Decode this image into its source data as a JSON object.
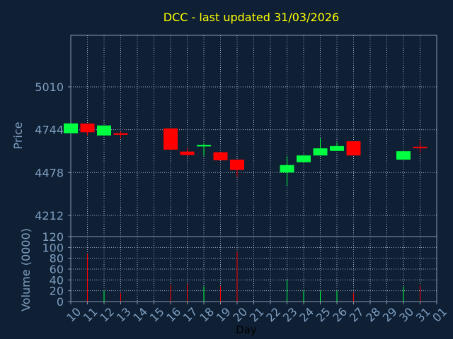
{
  "chart_data": {
    "type": "candlestick",
    "title": "DCC - last updated 31/03/2026",
    "xlabel": "Day",
    "x_ticks": [
      "10",
      "11",
      "12",
      "13",
      "14",
      "15",
      "16",
      "17",
      "18",
      "19",
      "20",
      "21",
      "22",
      "23",
      "24",
      "25",
      "26",
      "27",
      "28",
      "29",
      "30",
      "31",
      "01"
    ],
    "price_panel": {
      "ylabel": "Price",
      "yticks": [
        4212,
        4478,
        4744,
        5010
      ],
      "ylim": [
        4080,
        5330
      ],
      "candles": [
        {
          "day": "10",
          "open": 4722,
          "close": 4783,
          "high": 4783,
          "low": 4722
        },
        {
          "day": "11",
          "open": 4782,
          "close": 4728,
          "high": 4782,
          "low": 4708
        },
        {
          "day": "12",
          "open": 4708,
          "close": 4770,
          "high": 4770,
          "low": 4708
        },
        {
          "day": "13",
          "open": 4722,
          "close": 4712,
          "high": 4734,
          "low": 4690
        },
        {
          "day": "16",
          "open": 4752,
          "close": 4620,
          "high": 4752,
          "low": 4620
        },
        {
          "day": "17",
          "open": 4608,
          "close": 4587,
          "high": 4630,
          "low": 4580
        },
        {
          "day": "18",
          "open": 4640,
          "close": 4650,
          "high": 4660,
          "low": 4582
        },
        {
          "day": "19",
          "open": 4604,
          "close": 4554,
          "high": 4604,
          "low": 4554
        },
        {
          "day": "20",
          "open": 4558,
          "close": 4494,
          "high": 4558,
          "low": 4450
        },
        {
          "day": "23",
          "open": 4478,
          "close": 4524,
          "high": 4580,
          "low": 4395
        },
        {
          "day": "24",
          "open": 4542,
          "close": 4584,
          "high": 4584,
          "low": 4542
        },
        {
          "day": "25",
          "open": 4584,
          "close": 4628,
          "high": 4690,
          "low": 4584
        },
        {
          "day": "26",
          "open": 4612,
          "close": 4642,
          "high": 4665,
          "low": 4612
        },
        {
          "day": "27",
          "open": 4672,
          "close": 4584,
          "high": 4672,
          "low": 4584
        },
        {
          "day": "30",
          "open": 4558,
          "close": 4610,
          "high": 4610,
          "low": 4558
        },
        {
          "day": "31",
          "open": 4638,
          "close": 4632,
          "high": 4675,
          "low": 4600
        }
      ]
    },
    "volume_panel": {
      "ylabel": "Volume (0000)",
      "yticks": [
        0,
        20,
        40,
        60,
        80,
        100,
        120
      ],
      "ylim": [
        0,
        120
      ],
      "bars": [
        {
          "day": "11",
          "value": 88
        },
        {
          "day": "12",
          "value": 20
        },
        {
          "day": "13",
          "value": 16
        },
        {
          "day": "16",
          "value": 30
        },
        {
          "day": "17",
          "value": 33
        },
        {
          "day": "18",
          "value": 28
        },
        {
          "day": "19",
          "value": 28
        },
        {
          "day": "20",
          "value": 92
        },
        {
          "day": "23",
          "value": 40
        },
        {
          "day": "24",
          "value": 20
        },
        {
          "day": "25",
          "value": 20
        },
        {
          "day": "26",
          "value": 20
        },
        {
          "day": "27",
          "value": 16
        },
        {
          "day": "30",
          "value": 28
        },
        {
          "day": "31",
          "value": 30
        }
      ]
    },
    "colors": {
      "background": "#0f2035",
      "up": "#00ff40",
      "down": "#ff0000",
      "grid": "#a0b0c8",
      "border": "#8898ac",
      "title": "#ffff00",
      "tick": "#7f9fc0"
    },
    "grid": true
  }
}
